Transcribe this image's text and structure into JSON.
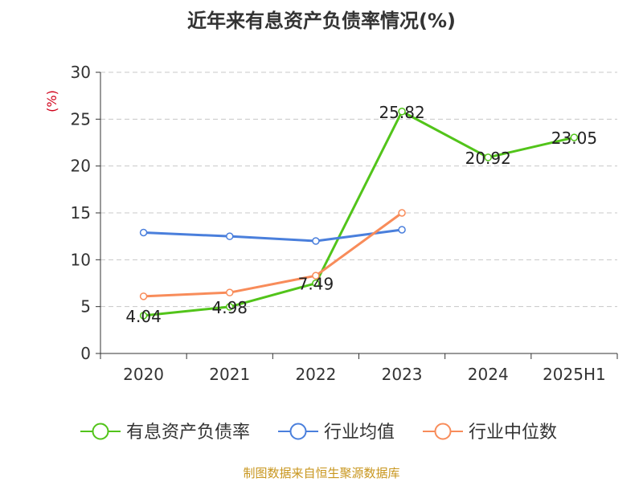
{
  "chart_data": {
    "type": "line",
    "title": "近年来有息资产负债率情况(%)",
    "ylabel": "(%)",
    "xlabel": "",
    "categories": [
      "2020",
      "2021",
      "2022",
      "2023",
      "2024",
      "2025H1"
    ],
    "ylim": [
      0,
      30
    ],
    "yticks": [
      0,
      5,
      10,
      15,
      20,
      25,
      30
    ],
    "grid": true,
    "legend_position": "bottom",
    "series": [
      {
        "name": "有息资产负债率",
        "color": "#52c41a",
        "values": [
          4.04,
          4.98,
          7.49,
          25.82,
          20.92,
          23.05
        ],
        "show_labels": true
      },
      {
        "name": "行业均值",
        "color": "#4a7fdc",
        "values": [
          12.9,
          12.5,
          12.0,
          13.2,
          null,
          null
        ],
        "show_labels": false
      },
      {
        "name": "行业中位数",
        "color": "#f88c5a",
        "values": [
          6.1,
          6.5,
          8.3,
          15.0,
          null,
          null
        ],
        "show_labels": false
      }
    ]
  },
  "footer": {
    "source": "制图数据来自恒生聚源数据库"
  }
}
